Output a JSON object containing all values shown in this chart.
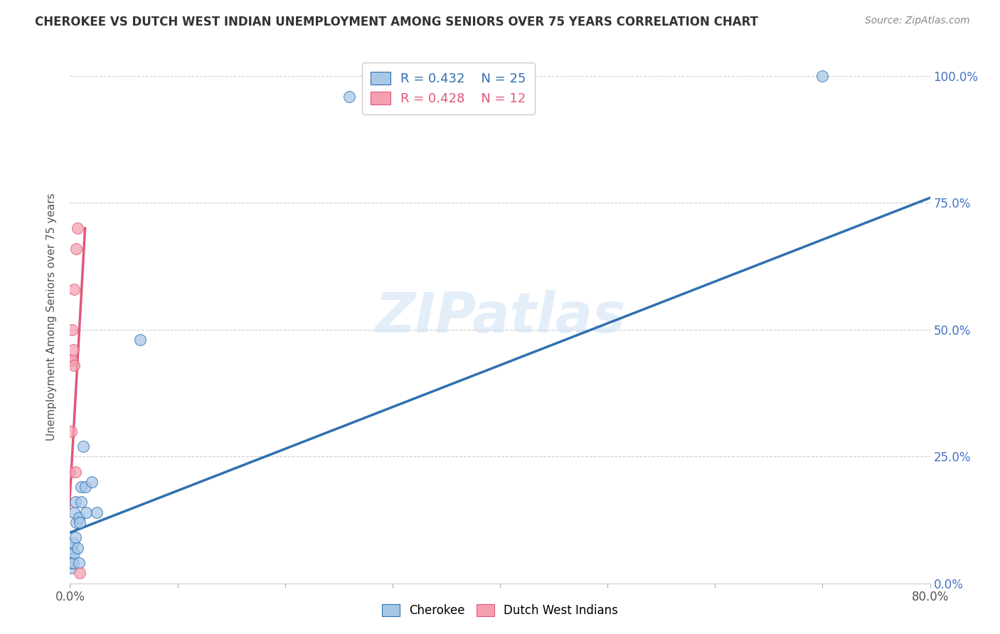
{
  "title": "CHEROKEE VS DUTCH WEST INDIAN UNEMPLOYMENT AMONG SENIORS OVER 75 YEARS CORRELATION CHART",
  "source": "Source: ZipAtlas.com",
  "ylabel": "Unemployment Among Seniors over 75 years",
  "watermark": "ZIPatlas",
  "xlim": [
    0.0,
    0.8
  ],
  "ylim": [
    0.0,
    1.05
  ],
  "xticks": [
    0.0,
    0.1,
    0.2,
    0.3,
    0.4,
    0.5,
    0.6,
    0.7,
    0.8
  ],
  "yticks": [
    0.0,
    0.25,
    0.5,
    0.75,
    1.0
  ],
  "yticklabels": [
    "0.0%",
    "25.0%",
    "50.0%",
    "75.0%",
    "100.0%"
  ],
  "cherokee_color": "#a8c8e8",
  "dutch_color": "#f4a0b0",
  "cherokee_line_color": "#3070b0",
  "dutch_line_color": "#e05878",
  "legend_cherokee_R": "0.432",
  "legend_cherokee_N": "25",
  "legend_dutch_R": "0.428",
  "legend_dutch_N": "12",
  "cherokee_x": [
    0.001,
    0.001,
    0.002,
    0.002,
    0.003,
    0.003,
    0.004,
    0.004,
    0.005,
    0.005,
    0.006,
    0.007,
    0.008,
    0.008,
    0.009,
    0.01,
    0.01,
    0.012,
    0.014,
    0.015,
    0.02,
    0.025,
    0.065,
    0.7,
    0.26
  ],
  "cherokee_y": [
    0.03,
    0.06,
    0.04,
    0.07,
    0.04,
    0.08,
    0.06,
    0.14,
    0.09,
    0.16,
    0.12,
    0.07,
    0.04,
    0.13,
    0.12,
    0.16,
    0.19,
    0.27,
    0.19,
    0.14,
    0.2,
    0.14,
    0.48,
    1.0,
    0.96
  ],
  "dutch_x": [
    0.0,
    0.001,
    0.001,
    0.002,
    0.002,
    0.003,
    0.004,
    0.004,
    0.005,
    0.006,
    0.007,
    0.009
  ],
  "dutch_y": [
    0.22,
    0.3,
    0.44,
    0.44,
    0.5,
    0.46,
    0.43,
    0.58,
    0.22,
    0.66,
    0.7,
    0.02
  ],
  "cherokee_trendline_x": [
    0.0,
    0.8
  ],
  "cherokee_trendline_y": [
    0.1,
    0.76
  ],
  "dutch_trendline_x": [
    -0.002,
    0.014
  ],
  "dutch_trendline_y": [
    0.1,
    0.7
  ],
  "marker_size": 130,
  "background_color": "#ffffff",
  "grid_color": "#cccccc"
}
